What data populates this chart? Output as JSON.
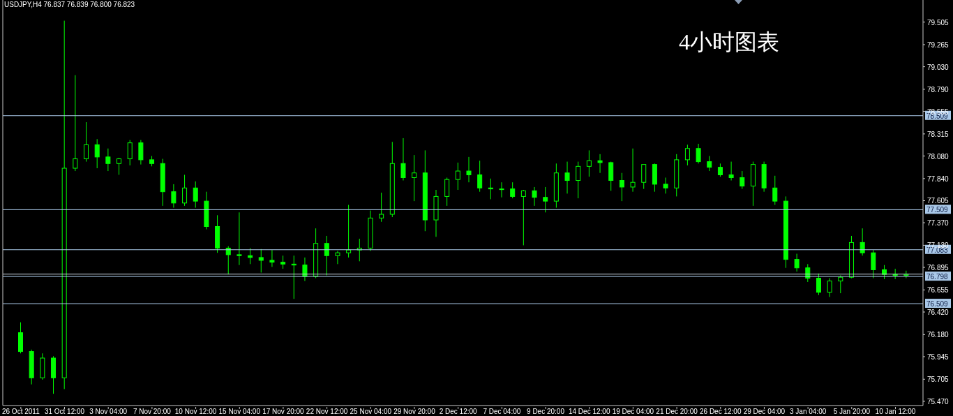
{
  "chart_data": {
    "type": "candlestick",
    "title": "USDJPY,H4 76.837 76.839 76.800 76.823",
    "annotations": [
      "4小时图表"
    ],
    "categories": [
      "26 Oct 2011",
      null,
      null,
      null,
      "31 Oct 12:00",
      null,
      null,
      null,
      "3 Nov 04:00",
      null,
      null,
      null,
      "7 Nov 20:00",
      null,
      null,
      null,
      "10 Nov 12:00",
      null,
      null,
      null,
      "15 Nov 04:00",
      null,
      null,
      null,
      "17 Nov 20:00",
      null,
      null,
      null,
      "22 Nov 12:00",
      null,
      null,
      null,
      "25 Nov 04:00",
      null,
      null,
      null,
      "29 Nov 20:00",
      null,
      null,
      null,
      "2 Dec 12:00",
      null,
      null,
      null,
      "7 Dec 04:00",
      null,
      null,
      null,
      "9 Dec 20:00",
      null,
      null,
      null,
      "14 Dec 12:00",
      null,
      null,
      null,
      "19 Dec 04:00",
      null,
      null,
      null,
      "21 Dec 20:00",
      null,
      null,
      null,
      "26 Dec 12:00",
      null,
      null,
      null,
      "29 Dec 04:00",
      null,
      null,
      null,
      "3 Jan 04:00",
      null,
      null,
      null,
      "5 Jan 20:00",
      null,
      null,
      null,
      "10 Jan 12:00",
      null
    ],
    "ohlc": [
      [
        76.2,
        76.31,
        75.98,
        76.0
      ],
      [
        76.0,
        76.02,
        75.65,
        75.72
      ],
      [
        75.72,
        75.98,
        75.7,
        75.93
      ],
      [
        75.93,
        75.95,
        75.55,
        75.72
      ],
      [
        75.72,
        79.52,
        75.6,
        77.95
      ],
      [
        77.95,
        78.94,
        77.92,
        78.05
      ],
      [
        78.05,
        78.44,
        78.02,
        78.2
      ],
      [
        78.2,
        78.26,
        77.95,
        78.07
      ],
      [
        78.07,
        78.16,
        77.92,
        78.0
      ],
      [
        78.0,
        78.06,
        77.88,
        78.05
      ],
      [
        78.05,
        78.25,
        77.98,
        78.22
      ],
      [
        78.22,
        78.25,
        77.99,
        78.04
      ],
      [
        78.04,
        78.08,
        77.97,
        78.0
      ],
      [
        78.0,
        78.05,
        77.55,
        77.7
      ],
      [
        77.7,
        77.78,
        77.53,
        77.58
      ],
      [
        77.58,
        77.88,
        77.55,
        77.74
      ],
      [
        77.74,
        77.81,
        77.53,
        77.6
      ],
      [
        77.6,
        77.7,
        77.3,
        77.33
      ],
      [
        77.33,
        77.45,
        77.05,
        77.1
      ],
      [
        77.1,
        77.12,
        76.82,
        77.03
      ],
      [
        77.03,
        77.48,
        76.92,
        77.02
      ],
      [
        77.02,
        77.1,
        76.93,
        77.0
      ],
      [
        77.0,
        77.09,
        76.84,
        76.97
      ],
      [
        76.97,
        77.08,
        76.9,
        76.95
      ],
      [
        76.95,
        77.02,
        76.88,
        76.93
      ],
      [
        76.93,
        77.02,
        76.56,
        76.92
      ],
      [
        76.92,
        77.0,
        76.75,
        76.8
      ],
      [
        76.8,
        77.31,
        76.78,
        77.15
      ],
      [
        77.15,
        77.23,
        76.81,
        77.02
      ],
      [
        77.02,
        77.07,
        76.93,
        77.05
      ],
      [
        77.05,
        77.56,
        77.0,
        77.08
      ],
      [
        77.08,
        77.2,
        76.96,
        77.1
      ],
      [
        77.1,
        77.5,
        77.07,
        77.42
      ],
      [
        77.42,
        77.69,
        77.38,
        77.46
      ],
      [
        77.46,
        78.23,
        77.43,
        78.0
      ],
      [
        78.0,
        78.27,
        77.82,
        77.85
      ],
      [
        77.85,
        78.09,
        77.6,
        77.9
      ],
      [
        77.9,
        78.14,
        77.28,
        77.4
      ],
      [
        77.4,
        77.72,
        77.22,
        77.65
      ],
      [
        77.65,
        77.85,
        77.55,
        77.83
      ],
      [
        77.83,
        78.01,
        77.72,
        77.92
      ],
      [
        77.92,
        78.07,
        77.8,
        77.88
      ],
      [
        77.88,
        78.03,
        77.7,
        77.74
      ],
      [
        77.74,
        77.84,
        77.62,
        77.73
      ],
      [
        77.73,
        77.8,
        77.64,
        77.73
      ],
      [
        77.73,
        77.8,
        77.63,
        77.65
      ],
      [
        77.65,
        77.72,
        77.13,
        77.71
      ],
      [
        77.71,
        77.75,
        77.55,
        77.64
      ],
      [
        77.64,
        77.75,
        77.48,
        77.6
      ],
      [
        77.6,
        78.0,
        77.53,
        77.9
      ],
      [
        77.9,
        78.02,
        77.68,
        77.82
      ],
      [
        77.82,
        78.02,
        77.63,
        77.97
      ],
      [
        77.97,
        78.14,
        77.86,
        78.03
      ],
      [
        78.03,
        78.1,
        77.9,
        78.01
      ],
      [
        78.01,
        78.02,
        77.71,
        77.82
      ],
      [
        77.82,
        77.9,
        77.6,
        77.75
      ],
      [
        77.75,
        78.16,
        77.7,
        77.8
      ],
      [
        77.8,
        77.99,
        77.73,
        77.99
      ],
      [
        77.99,
        78.0,
        77.7,
        77.78
      ],
      [
        77.78,
        77.85,
        77.68,
        77.74
      ],
      [
        77.74,
        78.1,
        77.65,
        78.04
      ],
      [
        78.04,
        78.2,
        77.98,
        78.16
      ],
      [
        78.16,
        78.21,
        78.0,
        78.02
      ],
      [
        78.02,
        78.08,
        77.92,
        77.96
      ],
      [
        77.96,
        78.0,
        77.86,
        77.88
      ],
      [
        77.88,
        78.02,
        77.82,
        77.85
      ],
      [
        77.85,
        77.92,
        77.73,
        77.76
      ],
      [
        77.76,
        78.02,
        77.55,
        77.99
      ],
      [
        77.99,
        78.02,
        77.7,
        77.74
      ],
      [
        77.74,
        77.87,
        77.56,
        77.6
      ],
      [
        77.6,
        77.65,
        76.89,
        76.98
      ],
      [
        76.98,
        77.04,
        76.85,
        76.89
      ],
      [
        76.89,
        76.93,
        76.74,
        76.78
      ],
      [
        76.78,
        76.83,
        76.6,
        76.63
      ],
      [
        76.63,
        76.78,
        76.58,
        76.75
      ],
      [
        76.75,
        76.81,
        76.62,
        76.79
      ],
      [
        76.79,
        77.23,
        76.78,
        77.16
      ],
      [
        77.16,
        77.31,
        77.02,
        77.05
      ],
      [
        77.05,
        77.08,
        76.78,
        76.87
      ],
      [
        76.87,
        76.92,
        76.77,
        76.82
      ],
      [
        76.82,
        76.88,
        76.77,
        76.81
      ],
      [
        76.81,
        76.86,
        76.78,
        76.82
      ]
    ],
    "color": "#00ff00",
    "ylim": [
      75.425,
      79.74
    ],
    "yticks": [
      {
        "value": 75.47,
        "label": "75.470"
      },
      75.705,
      75.945,
      {
        "value": 76.18,
        "label": "76.180"
      },
      {
        "value": 76.42,
        "label": "76.420"
      },
      76.655,
      76.895,
      {
        "value": 77.13,
        "label": "77.130"
      },
      {
        "value": 77.37,
        "label": "77.370"
      },
      77.605,
      {
        "value": 77.84,
        "label": "77.840"
      },
      {
        "value": 78.08,
        "label": "78.080"
      },
      78.315,
      78.555,
      {
        "value": 78.79,
        "label": "78.790"
      },
      {
        "value": 79.03,
        "label": "79.030"
      },
      79.265,
      79.505
    ],
    "ref_lines": [
      {
        "axis": "y",
        "value": 78.509,
        "label": "78.509",
        "color": "#a9c8e8"
      },
      {
        "axis": "y",
        "value": 77.509,
        "label": "77.509",
        "color": "#a9c8e8"
      },
      {
        "axis": "y",
        "value": 77.083,
        "label": "77.083",
        "color": "#a9c8e8"
      },
      {
        "axis": "y",
        "value": 76.823,
        "label": null,
        "color": "#c8d4e0"
      },
      {
        "axis": "y",
        "value": 76.798,
        "label": "76.798",
        "color": "#a9c8e8"
      },
      {
        "axis": "y",
        "value": 76.509,
        "label": "76.509",
        "color": "#a9c8e8"
      }
    ]
  }
}
